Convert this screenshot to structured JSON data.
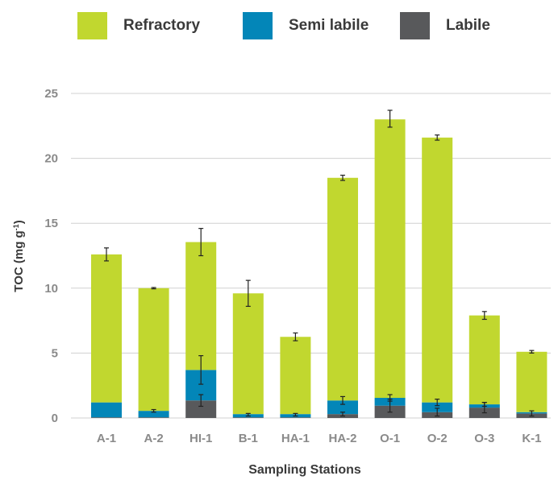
{
  "colors": {
    "refractory": "#c1d72f",
    "semi_labile": "#0386b8",
    "labile": "#58595b",
    "grid": "#d0d0d0",
    "tick_text": "#8a8a8a",
    "axis_title_text": "#3a3a3a",
    "error_bar": "#222222"
  },
  "chart_data": {
    "type": "bar",
    "stacked": true,
    "xlabel": "Sampling Stations",
    "ylabel": "TOC (mg g",
    "ylabel_superscript": "-1",
    "ylabel_suffix": ")",
    "ylim": [
      0,
      25
    ],
    "yticks": [
      "0",
      "5",
      "10",
      "15",
      "20",
      "25"
    ],
    "grid": "horizontal",
    "legend_position": "top",
    "categories": [
      "A-1",
      "A-2",
      "HI-1",
      "B-1",
      "HA-1",
      "HA-2",
      "O-1",
      "O-2",
      "O-3",
      "K-1"
    ],
    "series": [
      {
        "key": "labile",
        "name": "Labile",
        "values": [
          0.05,
          0.05,
          1.35,
          0.05,
          0.05,
          0.3,
          0.95,
          0.45,
          0.8,
          0.35
        ],
        "error_tops": [
          null,
          null,
          1.35,
          null,
          null,
          0.3,
          0.95,
          0.45,
          0.8,
          0.35
        ],
        "errors": [
          0,
          0,
          0.45,
          0,
          0,
          0.15,
          0.5,
          0.3,
          0.4,
          0.2
        ]
      },
      {
        "key": "semi_labile",
        "name": "Semi labile",
        "values": [
          1.15,
          0.5,
          2.35,
          0.25,
          0.25,
          1.05,
          0.6,
          0.75,
          0.25,
          0.1
        ],
        "error_tops": [
          null,
          0.55,
          3.7,
          0.25,
          0.25,
          1.35,
          1.55,
          1.2,
          1.05,
          null
        ],
        "errors": [
          0,
          0.1,
          1.1,
          0.1,
          0.1,
          0.3,
          0.25,
          0.25,
          0.15,
          0
        ]
      },
      {
        "key": "refractory",
        "name": "Refractory",
        "values": [
          11.4,
          9.45,
          9.85,
          9.3,
          5.95,
          17.15,
          21.45,
          20.4,
          6.85,
          4.65
        ],
        "error_tops": [
          12.6,
          10.0,
          13.55,
          9.6,
          6.25,
          18.5,
          23.05,
          21.6,
          7.9,
          5.1
        ],
        "errors": [
          0.5,
          0.05,
          1.05,
          1.0,
          0.3,
          0.2,
          0.65,
          0.2,
          0.3,
          0.1
        ]
      }
    ],
    "legend": [
      {
        "key": "refractory",
        "label": "Refractory"
      },
      {
        "key": "semi_labile",
        "label": "Semi labile"
      },
      {
        "key": "labile",
        "label": "Labile"
      }
    ]
  }
}
